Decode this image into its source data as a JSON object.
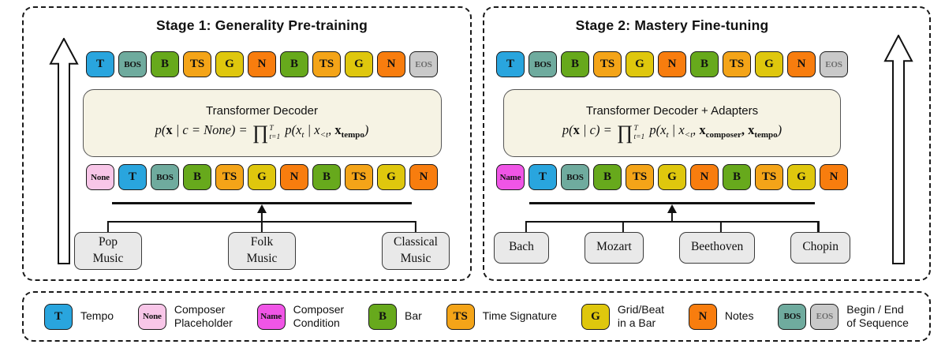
{
  "token_colors": {
    "T": "#29A5DE",
    "BOS": "#6FAB9E",
    "B": "#67A91C",
    "TS": "#F4A418",
    "G": "#DFC70D",
    "N": "#F87D0E",
    "EOS": "#C9C9C9",
    "None": "#F8C6E8",
    "Name": "#F055E6"
  },
  "token_text_colors": {
    "EOS": "#6E6E6E"
  },
  "colors": {
    "decoder_box_bg": "#F6F3E4",
    "source_box_bg": "#E9E9E9"
  },
  "stage1": {
    "title": "Stage 1: Generality Pre-training",
    "output_tokens": [
      "T",
      "BOS",
      "B",
      "TS",
      "G",
      "N",
      "B",
      "TS",
      "G",
      "N",
      "EOS"
    ],
    "decoder_label": "Transformer Decoder",
    "formula": [
      {
        "s": "it",
        "v": "p("
      },
      {
        "s": "bf",
        "v": "x"
      },
      {
        "s": "it",
        "v": " | "
      },
      {
        "s": "it",
        "v": "c = None"
      },
      {
        "s": "it",
        "v": ") = "
      },
      {
        "s": "prod",
        "sup": "T",
        "sub": "t=1"
      },
      {
        "s": "it",
        "v": " p("
      },
      {
        "s": "it",
        "v": "x"
      },
      {
        "s": "sub",
        "v": "t"
      },
      {
        "s": "it",
        "v": " | "
      },
      {
        "s": "it",
        "v": "x"
      },
      {
        "s": "sub",
        "v": "<t"
      },
      {
        "s": "it",
        "v": ", "
      },
      {
        "s": "bf",
        "v": "x"
      },
      {
        "s": "bsub",
        "v": "tempo"
      },
      {
        "s": "it",
        "v": ")"
      }
    ],
    "input_tokens": [
      "None",
      "T",
      "BOS",
      "B",
      "TS",
      "G",
      "N",
      "B",
      "TS",
      "G",
      "N"
    ],
    "sources": [
      [
        "Pop",
        "Music"
      ],
      [
        "Folk",
        "Music"
      ],
      [
        "Classical",
        "Music"
      ]
    ]
  },
  "stage2": {
    "title": "Stage 2: Mastery Fine-tuning",
    "output_tokens": [
      "T",
      "BOS",
      "B",
      "TS",
      "G",
      "N",
      "B",
      "TS",
      "G",
      "N",
      "EOS"
    ],
    "decoder_label": "Transformer Decoder + Adapters",
    "formula": [
      {
        "s": "it",
        "v": "p("
      },
      {
        "s": "bf",
        "v": "x"
      },
      {
        "s": "it",
        "v": " | "
      },
      {
        "s": "it",
        "v": "c"
      },
      {
        "s": "it",
        "v": ") = "
      },
      {
        "s": "prod",
        "sup": "T",
        "sub": "t=1"
      },
      {
        "s": "it",
        "v": " p("
      },
      {
        "s": "it",
        "v": "x"
      },
      {
        "s": "sub",
        "v": "t"
      },
      {
        "s": "it",
        "v": " | "
      },
      {
        "s": "it",
        "v": "x"
      },
      {
        "s": "sub",
        "v": "<t"
      },
      {
        "s": "it",
        "v": ", "
      },
      {
        "s": "bf",
        "v": "x"
      },
      {
        "s": "bsub",
        "v": "composer"
      },
      {
        "s": "bf",
        "v": ", "
      },
      {
        "s": "bf",
        "v": "x"
      },
      {
        "s": "bsub",
        "v": "tempo"
      },
      {
        "s": "it",
        "v": ")"
      }
    ],
    "input_tokens": [
      "Name",
      "T",
      "BOS",
      "B",
      "TS",
      "G",
      "N",
      "B",
      "TS",
      "G",
      "N"
    ],
    "sources": [
      [
        "Bach"
      ],
      [
        "Mozart"
      ],
      [
        "Beethoven"
      ],
      [
        "Chopin"
      ]
    ]
  },
  "legend": {
    "items": [
      {
        "tokens": [
          "T"
        ],
        "label_lines": [
          "Tempo"
        ]
      },
      {
        "tokens": [
          "None"
        ],
        "label_lines": [
          "Composer",
          "Placeholder"
        ]
      },
      {
        "tokens": [
          "Name"
        ],
        "label_lines": [
          "Composer",
          "Condition"
        ]
      },
      {
        "tokens": [
          "B"
        ],
        "label_lines": [
          "Bar"
        ]
      },
      {
        "tokens": [
          "TS"
        ],
        "label_lines": [
          "Time Signature"
        ]
      },
      {
        "tokens": [
          "G"
        ],
        "label_lines": [
          "Grid/Beat",
          "in a Bar"
        ]
      },
      {
        "tokens": [
          "N"
        ],
        "label_lines": [
          "Notes"
        ]
      },
      {
        "tokens": [
          "BOS",
          "EOS"
        ],
        "label_lines": [
          "Begin / End",
          "of Sequence"
        ]
      }
    ]
  }
}
